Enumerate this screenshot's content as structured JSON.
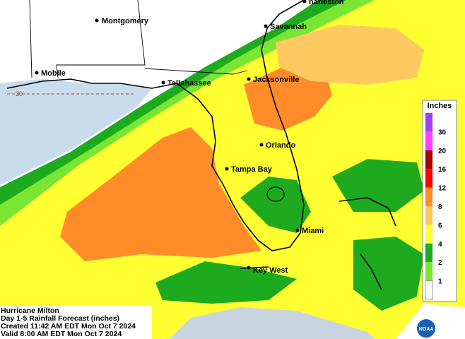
{
  "map": {
    "cities": [
      "harleston",
      "Montgomery",
      "Savannah",
      "Mobile",
      "Tallahassee",
      "Jacksonville",
      "Orlando",
      "Tampa Bay",
      "Miami",
      "Key West"
    ],
    "lat_label": "30",
    "legend": {
      "title": "Inches",
      "items": [
        {
          "label": 30,
          "color": "#a040f0"
        },
        {
          "label": 20,
          "color": "#ff40ff"
        },
        {
          "label": 16,
          "color": "#a00000"
        },
        {
          "label": 12,
          "color": "#ff0000"
        },
        {
          "label": 8,
          "color": "#ff8c28"
        },
        {
          "label": 6,
          "color": "#ffc860"
        },
        {
          "label": 4,
          "color": "#ffff32"
        },
        {
          "label": 2,
          "color": "#1eaa1e"
        },
        {
          "label": 1,
          "color": "#78e632"
        }
      ],
      "bottom_color": "#ffffff"
    },
    "caption": [
      "Hurricane Milton",
      "Day 1-5 Rainfall Forecast (inches)",
      "Created 11:42 AM EDT Mon Oct 7 2024",
      "Valid 8:00 AM EDT Mon Oct 7 2024"
    ],
    "logo_text": "NOAA"
  }
}
